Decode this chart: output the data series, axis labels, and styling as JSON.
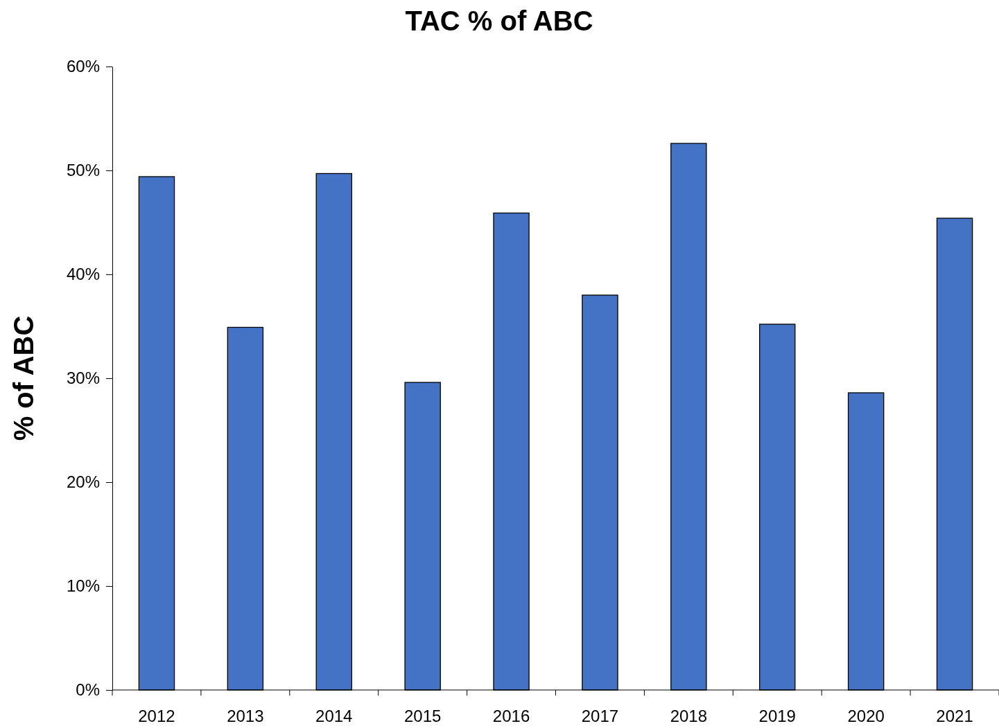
{
  "chart_data": {
    "type": "bar",
    "title": "TAC % of ABC",
    "ylabel": "% of ABC",
    "categories": [
      "2012",
      "2013",
      "2014",
      "2015",
      "2016",
      "2017",
      "2018",
      "2019",
      "2020",
      "2021"
    ],
    "values": [
      49.4,
      34.9,
      49.7,
      29.6,
      45.9,
      38.0,
      52.6,
      35.2,
      28.6,
      45.4
    ],
    "color": "#4472c4",
    "ylim": [
      0,
      60
    ],
    "yticks": [
      {
        "value": 0,
        "label": "0%"
      },
      {
        "value": 10,
        "label": "10%"
      },
      {
        "value": 20,
        "label": "20%"
      },
      {
        "value": 30,
        "label": "30%"
      },
      {
        "value": 40,
        "label": "40%"
      },
      {
        "value": 50,
        "label": "50%"
      },
      {
        "value": 60,
        "label": "60%"
      }
    ],
    "grid": false
  }
}
